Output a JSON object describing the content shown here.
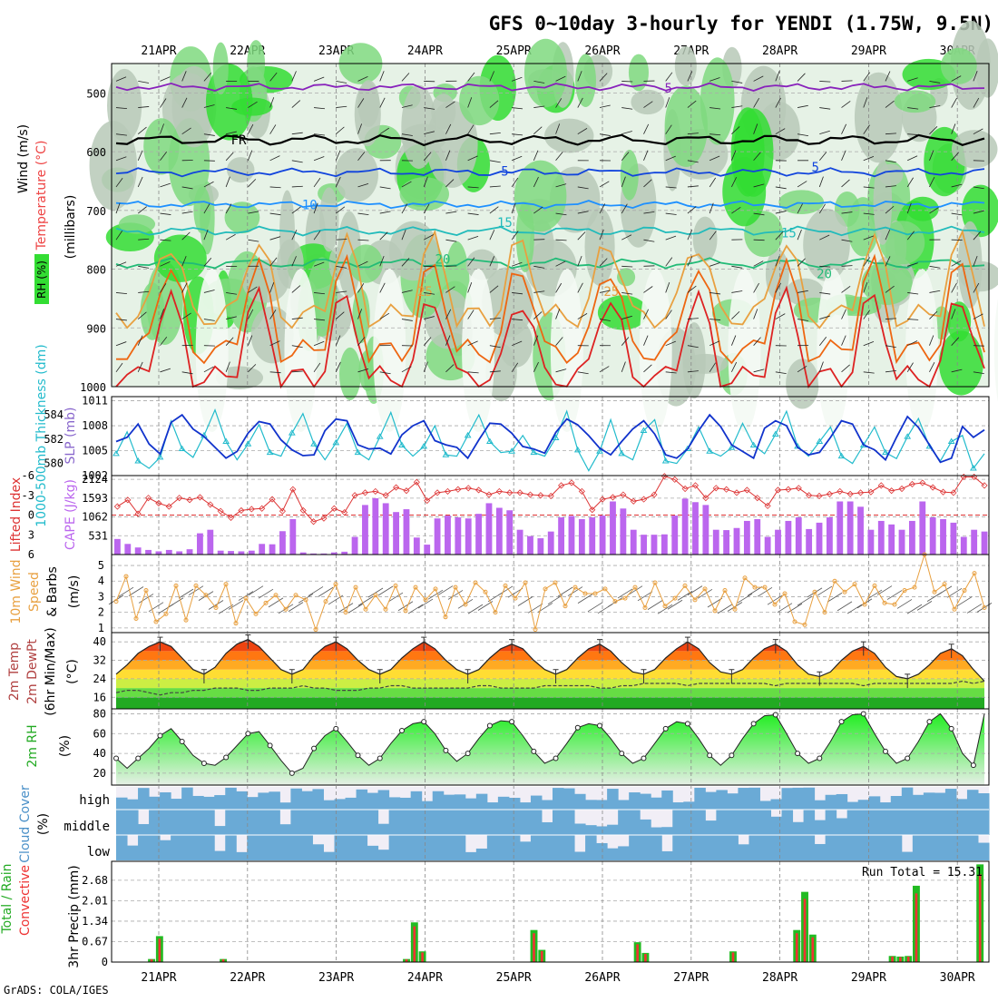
{
  "title": "GFS 0~10day 3-hourly for YENDI (1.75W, 9.5N)",
  "footer": "GrADS: COLA/IGES",
  "dates": [
    "21APR",
    "22APR",
    "23APR",
    "24APR",
    "25APR",
    "26APR",
    "27APR",
    "28APR",
    "29APR",
    "30APR"
  ],
  "colors": {
    "rh_green": "#33dd33",
    "rh_mid": "#7fd97f",
    "rh_gray": "#b7c9b7",
    "rh_light": "#e6f2e6",
    "thickness": "#22bbcc",
    "slp": "#1133cc",
    "lifted": "#dd3333",
    "cape": "#bb66ee",
    "wind10": "#e8a040",
    "cloud": "#6aaad6",
    "rain": "#22bb22",
    "conv": "#ee3333"
  },
  "chart_data": [
    {
      "type": "heatmap",
      "panel": "upper-air",
      "ylabel_wind": "Wind (m/s)",
      "ylabel_temp": "Temperature (°C)",
      "ylabel_rh": "RH (%)",
      "ylabel_units": "(millibars)",
      "yticks": [
        "500",
        "600",
        "700",
        "800",
        "900",
        "1000"
      ],
      "ylim": [
        1000,
        450
      ],
      "isotherm_labels": [
        {
          "text": "-5",
          "t": 5.7,
          "p": 492
        },
        {
          "text": "FR",
          "t": 0.9,
          "p": 580
        },
        {
          "text": "5",
          "t": 3.9,
          "p": 633
        },
        {
          "text": "5",
          "t": 7.4,
          "p": 626
        },
        {
          "text": "10",
          "t": 1.7,
          "p": 690
        },
        {
          "text": "15",
          "t": 3.9,
          "p": 720
        },
        {
          "text": "15",
          "t": 7.1,
          "p": 738
        },
        {
          "text": "20",
          "t": 3.2,
          "p": 783
        },
        {
          "text": "20",
          "t": 7.5,
          "p": 808
        },
        {
          "text": "25",
          "t": 3.0,
          "p": 838
        },
        {
          "text": "25",
          "t": 5.1,
          "p": 838
        }
      ],
      "isotherms": [
        {
          "name": "-5",
          "color": "#8822bb",
          "base": 490,
          "amp": 6
        },
        {
          "name": "FR",
          "color": "#000000",
          "base": 580,
          "amp": 10
        },
        {
          "name": "5",
          "color": "#1144dd",
          "base": 635,
          "amp": 7
        },
        {
          "name": "10",
          "color": "#1e90ff",
          "base": 690,
          "amp": 6
        },
        {
          "name": "15",
          "color": "#22bbbb",
          "base": 735,
          "amp": 8
        },
        {
          "name": "20",
          "color": "#22bb77",
          "base": 790,
          "amp": 10
        },
        {
          "name": "25",
          "color": "#e8a040",
          "base": 840,
          "amp": 140
        },
        {
          "name": "30",
          "color": "#ee6611",
          "base": 900,
          "amp": 160
        },
        {
          "name": "35",
          "color": "#dd2222",
          "base": 945,
          "amp": 150
        }
      ]
    },
    {
      "type": "line",
      "panel": "thickness-slp",
      "ylabel_left": "1000-500mb Thickness (dm)",
      "ylabel_right": "SLP (mb)",
      "left_ticks": [
        "584",
        "582",
        "580"
      ],
      "right_ticks": [
        "1011",
        "1008",
        "1005",
        "1002"
      ],
      "left_ylim": [
        579,
        585.5
      ],
      "right_ylim": [
        1002,
        1011.5
      ],
      "series": [
        {
          "name": "thickness",
          "values": [
            580.8,
            582.6,
            580.2,
            579.6,
            580.5,
            583.5,
            581.2,
            580.5,
            582.3,
            584.4,
            581.8,
            580.3,
            581.6,
            583.2,
            580.9,
            580.6,
            582.5,
            584.1,
            581.6,
            580.3,
            581.7,
            583.3,
            580.9,
            580.3,
            582.2,
            584.2,
            581.5,
            580.6,
            581.4,
            583.1,
            580.7,
            580.6,
            582.3,
            584.0,
            581.8,
            580.9,
            581.0,
            582.3,
            580.9,
            580.6,
            582.1,
            584.3,
            581.1,
            579.4,
            581.0,
            583.6,
            580.8,
            580.3,
            582.7,
            583.6,
            580.2,
            580.0,
            581.2,
            583.0,
            581.0,
            580.6,
            581.3,
            583.3,
            581.5,
            580.8,
            582.4,
            584.3,
            581.4,
            580.6,
            581.8,
            583.0,
            580.6,
            580.0,
            581.5,
            583.0,
            580.9,
            580.4,
            582.2,
            583.7,
            581.4,
            580.2,
            581.8,
            582.3,
            579.6,
            580.8
          ]
        },
        {
          "name": "slp",
          "values": [
            1006.1,
            1006.6,
            1008.2,
            1005.8,
            1004.6,
            1008.4,
            1009.3,
            1007.6,
            1006.7,
            1005.4,
            1004.1,
            1004.9,
            1007.1,
            1008.5,
            1008.2,
            1006.3,
            1005.1,
            1004.4,
            1004.5,
            1007.4,
            1008.8,
            1008.6,
            1005.7,
            1005.2,
            1005.3,
            1004.6,
            1006.9,
            1008.0,
            1008.6,
            1006.2,
            1005.7,
            1005.4,
            1004.1,
            1006.3,
            1008.3,
            1008.2,
            1007.1,
            1005.5,
            1005.2,
            1004.7,
            1007.2,
            1008.8,
            1008.1,
            1006.8,
            1005.3,
            1004.5,
            1006.1,
            1007.6,
            1008.6,
            1007.0,
            1004.5,
            1004.1,
            1005.2,
            1007.4,
            1009.3,
            1007.9,
            1005.7,
            1004.9,
            1004.1,
            1007.7,
            1008.6,
            1008.0,
            1005.4,
            1004.5,
            1004.8,
            1006.6,
            1008.6,
            1008.2,
            1005.7,
            1005.1,
            1003.9,
            1006.6,
            1009.1,
            1007.8,
            1005.7,
            1003.6,
            1004.1,
            1007.9,
            1006.6,
            1007.5
          ]
        }
      ]
    },
    {
      "type": "bar",
      "panel": "lifted-cape",
      "ylabel_left": "Lifted Index",
      "ylabel_right": "CAPE (J/kg)",
      "left_ticks": [
        "-6",
        "-3",
        "0",
        "3",
        "6"
      ],
      "right_ticks": [
        "2124",
        "1593",
        "1062",
        "531"
      ],
      "series": [
        {
          "name": "cape",
          "values": [
            440,
            300,
            200,
            130,
            90,
            130,
            90,
            150,
            600,
            700,
            110,
            100,
            90,
            110,
            300,
            290,
            660,
            1000,
            60,
            30,
            30,
            60,
            80,
            500,
            1400,
            1590,
            1450,
            1200,
            1280,
            480,
            280,
            1020,
            1100,
            1050,
            1020,
            1150,
            1450,
            1320,
            1250,
            700,
            520,
            460,
            650,
            1050,
            1090,
            1000,
            1050,
            1100,
            1500,
            1300,
            700,
            560,
            560,
            570,
            1100,
            1580,
            1480,
            1400,
            700,
            690,
            750,
            950,
            1000,
            500,
            700,
            950,
            1050,
            720,
            900,
            1050,
            1500,
            1500,
            1350,
            700,
            950,
            850,
            700,
            950,
            1500,
            1050,
            1000,
            900,
            500,
            700,
            650
          ]
        },
        {
          "name": "lifted_index",
          "values": [
            -1.3,
            -2.3,
            -0.2,
            -2.6,
            -1.8,
            -1.3,
            -2.6,
            -2.3,
            -2.7,
            -1.6,
            -0.6,
            0.4,
            -0.7,
            -0.9,
            -1.0,
            -2.4,
            -0.6,
            -3.9,
            -0.7,
            1.0,
            0.5,
            -1.0,
            -0.4,
            -3.0,
            -3.4,
            -3.6,
            -3.0,
            -4.2,
            -3.7,
            -5.0,
            -2.2,
            -3.4,
            -3.6,
            -3.9,
            -4.1,
            -3.8,
            -3.1,
            -3.6,
            -3.4,
            -3.4,
            -3.1,
            -3.0,
            -2.9,
            -4.5,
            -4.9,
            -3.6,
            -0.8,
            -2.4,
            -2.7,
            -3.1,
            -2.1,
            -2.4,
            -3.1,
            -5.9,
            -5.4,
            -4.0,
            -4.5,
            -2.6,
            -4.1,
            -3.9,
            -3.4,
            -3.8,
            -2.6,
            -1.4,
            -3.8,
            -3.9,
            -4.1,
            -3.0,
            -2.9,
            -3.2,
            -3.6,
            -3.2,
            -3.4,
            -3.5,
            -4.5,
            -3.7,
            -4.0,
            -4.7,
            -4.9,
            -4.2,
            -3.5,
            -3.4,
            -5.8,
            -5.8,
            -4.5
          ]
        }
      ]
    },
    {
      "type": "line",
      "panel": "wind10m",
      "ylabel": "10m Wind Speed (m/s) & Barbs",
      "yticks": [
        "5",
        "4",
        "3",
        "2",
        "1"
      ],
      "ylim": [
        0.7,
        5.7
      ],
      "series": [
        {
          "name": "speed",
          "values": [
            2.7,
            4.3,
            1.6,
            3.4,
            1.4,
            1.9,
            3.7,
            1.5,
            3.7,
            3.1,
            2.3,
            3.8,
            1.3,
            2.9,
            1.9,
            2.6,
            3.1,
            2.2,
            3.1,
            2.8,
            0.9,
            2.7,
            3.8,
            2.0,
            3.6,
            2.2,
            3.1,
            2.2,
            3.7,
            2.1,
            3.6,
            2.8,
            3.5,
            1.7,
            3.6,
            2.5,
            3.9,
            3.3,
            2.0,
            3.7,
            2.9,
            3.9,
            0.9,
            3.5,
            3.9,
            2.4,
            3.6,
            3.2,
            3.2,
            3.5,
            2.7,
            2.9,
            3.6,
            2.3,
            3.9,
            2.4,
            2.9,
            3.7,
            2.8,
            3.5,
            2.1,
            3.4,
            2.2,
            4.2,
            3.6,
            3.6,
            2.5,
            3.2,
            1.4,
            1.2,
            3.3,
            2.0,
            4.0,
            3.3,
            3.8,
            2.5,
            3.7,
            2.6,
            2.5,
            3.4,
            3.6,
            5.7,
            3.3,
            3.8,
            2.2,
            3.4,
            4.5,
            2.3
          ]
        }
      ]
    },
    {
      "type": "area",
      "panel": "temperature",
      "ylabel": "2m Temp 2m DewPt (6hr Min/Max) (°C)",
      "yticks": [
        "40",
        "32",
        "24",
        "16"
      ],
      "ylim": [
        11,
        44
      ],
      "series": [
        {
          "name": "temp",
          "values": [
            26,
            30,
            35,
            38,
            40,
            38,
            33,
            28,
            26,
            29,
            35,
            39,
            41,
            38,
            33,
            28,
            26,
            28,
            34,
            38,
            40,
            37,
            32,
            28,
            26,
            28,
            33,
            37,
            40,
            37,
            32,
            28,
            26,
            28,
            33,
            37,
            39,
            37,
            32,
            28,
            26,
            28,
            33,
            37,
            39,
            36,
            31,
            27,
            26,
            28,
            33,
            37,
            40,
            37,
            31,
            27,
            26,
            28,
            33,
            37,
            39,
            36,
            30,
            26,
            25,
            27,
            32,
            36,
            38,
            35,
            29,
            25,
            24,
            26,
            30,
            35,
            37,
            34,
            28,
            23
          ]
        },
        {
          "name": "dewpoint",
          "values": [
            18,
            19,
            19,
            18,
            17,
            18,
            18,
            19,
            19,
            20,
            20,
            20,
            19,
            19,
            20,
            20,
            20,
            21,
            20,
            20,
            19,
            19,
            19,
            20,
            20,
            21,
            21,
            20,
            20,
            20,
            20,
            20,
            20,
            21,
            21,
            20,
            20,
            20,
            20,
            21,
            21,
            21,
            21,
            21,
            20,
            20,
            21,
            21,
            22,
            22,
            22,
            22,
            21,
            22,
            22,
            22,
            22,
            22,
            22,
            22,
            21,
            22,
            22,
            22,
            22,
            22,
            22,
            22,
            21,
            22,
            22,
            22,
            22,
            22,
            22,
            22,
            22,
            23,
            22,
            23
          ]
        }
      ]
    },
    {
      "type": "area",
      "panel": "humidity",
      "ylabel": "2m RH (%)",
      "yticks": [
        "80",
        "60",
        "40",
        "20"
      ],
      "ylim": [
        8,
        85
      ],
      "series": [
        {
          "name": "rh",
          "values": [
            35,
            25,
            35,
            45,
            58,
            65,
            52,
            38,
            30,
            28,
            36,
            48,
            60,
            62,
            48,
            33,
            20,
            25,
            45,
            58,
            65,
            52,
            38,
            28,
            35,
            50,
            63,
            70,
            72,
            60,
            43,
            32,
            40,
            55,
            68,
            73,
            72,
            58,
            42,
            30,
            35,
            50,
            66,
            70,
            68,
            55,
            40,
            30,
            35,
            50,
            65,
            72,
            70,
            55,
            38,
            28,
            38,
            55,
            70,
            78,
            79,
            60,
            40,
            30,
            35,
            52,
            72,
            79,
            80,
            60,
            42,
            30,
            35,
            52,
            72,
            80,
            65,
            40,
            28,
            80
          ]
        }
      ]
    },
    {
      "type": "bar",
      "panel": "cloud",
      "ylabel": "Cloud Cover (%)",
      "levels": [
        "high",
        "middle",
        "low"
      ]
    },
    {
      "type": "bar",
      "panel": "precip",
      "ylabel": "3hr Precip (mm)",
      "ylabel_left": "Total / Rain",
      "ylabel_left2": "Convective",
      "yticks": [
        "2.68",
        "2.01",
        "1.34",
        "0.67",
        "0"
      ],
      "ylim": [
        0,
        3.3
      ],
      "annotation": "Run Total = 15.31",
      "series": [
        {
          "name": "total",
          "values": [
            0,
            0,
            0,
            0,
            0.1,
            0.85,
            0,
            0,
            0,
            0,
            0,
            0,
            0,
            0.1,
            0,
            0,
            0,
            0,
            0,
            0,
            0,
            0,
            0,
            0,
            0,
            0,
            0,
            0,
            0,
            0,
            0,
            0,
            0,
            0,
            0,
            0,
            0.1,
            1.3,
            0.35,
            0,
            0,
            0,
            0,
            0,
            0,
            0,
            0,
            0,
            0,
            0,
            0,
            0,
            1.05,
            0.4,
            0,
            0,
            0,
            0,
            0,
            0,
            0,
            0,
            0,
            0,
            0,
            0.65,
            0.3,
            0,
            0,
            0,
            0,
            0,
            0,
            0,
            0,
            0,
            0,
            0.35,
            0,
            0,
            0,
            0,
            0,
            0,
            0,
            1.05,
            2.3,
            0.9,
            0,
            0,
            0,
            0,
            0,
            0,
            0,
            0,
            0,
            0.2,
            0.18,
            0.2,
            2.5,
            0,
            0,
            0,
            0,
            0,
            0,
            0,
            3.2
          ]
        }
      ]
    }
  ]
}
